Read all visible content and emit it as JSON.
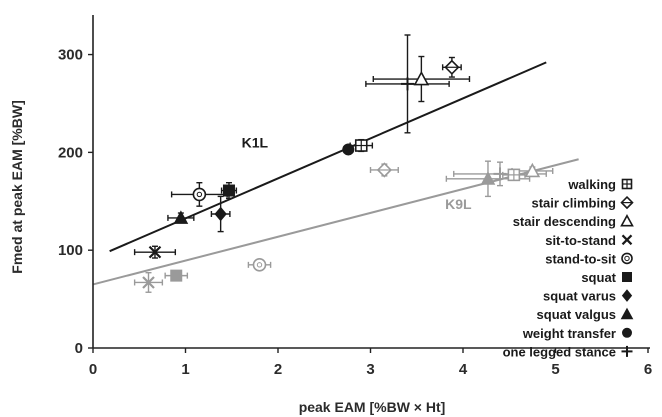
{
  "chart_data": {
    "type": "scatter",
    "xlabel": "peak EAM [%BW × Ht]",
    "ylabel": "Fmed at peak EAM [%BW]",
    "xlim": [
      0,
      6
    ],
    "ylim": [
      0,
      320
    ],
    "xticks": [
      "0",
      "1",
      "2",
      "3",
      "4",
      "5",
      "6"
    ],
    "yticks": [
      "0",
      "100",
      "200",
      "300"
    ],
    "legend_position": "right",
    "legend": [
      {
        "label": "walking",
        "marker": "open-square"
      },
      {
        "label": "stair climbing",
        "marker": "open-diamond"
      },
      {
        "label": "stair descending",
        "marker": "open-triangle"
      },
      {
        "label": "sit-to-stand",
        "marker": "x"
      },
      {
        "label": "stand-to-sit",
        "marker": "open-circle"
      },
      {
        "label": "squat",
        "marker": "filled-square"
      },
      {
        "label": "squat varus",
        "marker": "filled-diamond"
      },
      {
        "label": "squat valgus",
        "marker": "filled-triangle"
      },
      {
        "label": "weight transfer",
        "marker": "filled-circle"
      },
      {
        "label": "one legged stance",
        "marker": "plus"
      }
    ],
    "series": [
      {
        "name": "K1L",
        "color": "#1a1a1a",
        "fit_line": {
          "x": [
            0.18,
            4.9
          ],
          "y": [
            99,
            292
          ]
        },
        "points": [
          {
            "activity": "walking",
            "x": 2.9,
            "y": 207,
            "xerr": 0.12,
            "yerr": 6
          },
          {
            "activity": "stair climbing",
            "x": 3.88,
            "y": 287,
            "xerr": 0.1,
            "yerr": 10
          },
          {
            "activity": "stair descending",
            "x": 3.55,
            "y": 275,
            "xerr": 0.52,
            "yerr": 23
          },
          {
            "activity": "sit-to-stand",
            "x": 0.67,
            "y": 98,
            "xerr": 0.22,
            "yerr": 6
          },
          {
            "activity": "stand-to-sit",
            "x": 1.15,
            "y": 157,
            "xerr": 0.3,
            "yerr": 12
          },
          {
            "activity": "squat",
            "x": 1.47,
            "y": 161,
            "xerr": 0.08,
            "yerr": 8
          },
          {
            "activity": "squat varus",
            "x": 1.38,
            "y": 137,
            "xerr": 0.1,
            "yerr": 18
          },
          {
            "activity": "squat valgus",
            "x": 0.95,
            "y": 133,
            "xerr": 0.14,
            "yerr": 5
          },
          {
            "activity": "weight transfer",
            "x": 2.76,
            "y": 203,
            "xerr": 0.05,
            "yerr": 3
          },
          {
            "activity": "one legged stance",
            "x": 3.4,
            "y": 270,
            "xerr": 0.45,
            "yerr": 50
          }
        ]
      },
      {
        "name": "K9L",
        "color": "#9a9a9a",
        "fit_line": {
          "x": [
            0.0,
            5.25
          ],
          "y": [
            65,
            193
          ]
        },
        "points": [
          {
            "activity": "walking",
            "x": 4.55,
            "y": 177,
            "xerr": 0.12,
            "yerr": 5
          },
          {
            "activity": "stair climbing",
            "x": 3.15,
            "y": 182,
            "xerr": 0.15,
            "yerr": 6
          },
          {
            "activity": "stair descending",
            "x": 4.75,
            "y": 181,
            "xerr": 0.22,
            "yerr": 4
          },
          {
            "activity": "sit-to-stand",
            "x": 0.6,
            "y": 67,
            "xerr": 0.15,
            "yerr": 10
          },
          {
            "activity": "stand-to-sit",
            "x": 1.8,
            "y": 85,
            "xerr": 0.12,
            "yerr": 5
          },
          {
            "activity": "squat",
            "x": 0.9,
            "y": 74,
            "xerr": 0.12,
            "yerr": 4
          },
          {
            "activity": "squat valgus",
            "x": 4.27,
            "y": 173,
            "xerr": 0.45,
            "yerr": 18
          },
          {
            "activity": "one legged stance",
            "x": 4.4,
            "y": 178,
            "xerr": 0.5,
            "yerr": 12
          }
        ]
      }
    ]
  }
}
